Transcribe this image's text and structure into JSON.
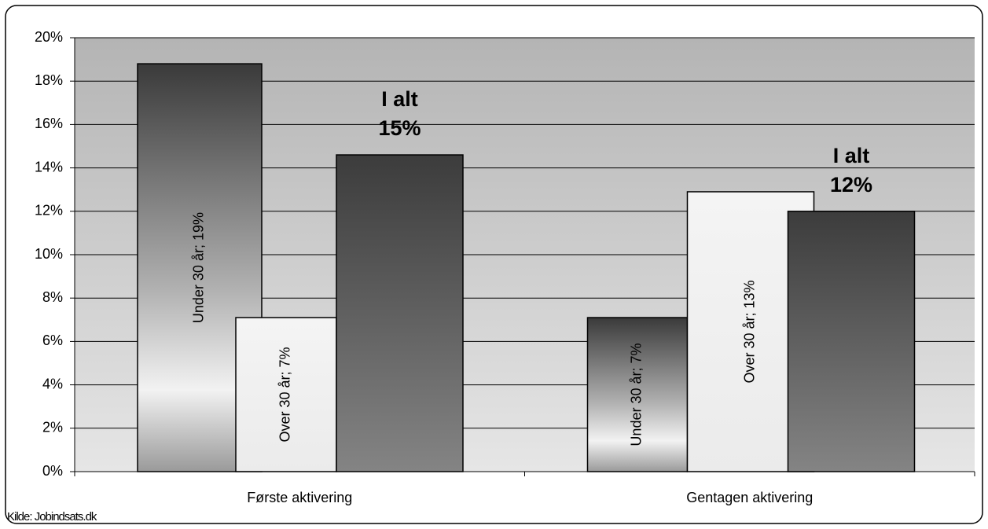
{
  "chart_data": {
    "type": "bar",
    "source": "Kilde: Jobindsats.dk",
    "categories": [
      "Første aktivering",
      "Gentagen aktivering"
    ],
    "series": [
      {
        "name": "Under 30 år",
        "values": [
          18.8,
          7.1
        ],
        "value_labels": [
          "Under 30 år; 19%",
          "Under 30 år; 7%"
        ]
      },
      {
        "name": "Over 30 år",
        "values": [
          7.1,
          12.9
        ],
        "value_labels": [
          "Over 30 år; 7%",
          "Over 30 år; 13%"
        ]
      },
      {
        "name": "I alt",
        "values": [
          14.6,
          12.0
        ],
        "value_labels": [
          "15%",
          "12%"
        ]
      }
    ],
    "ylim": [
      0,
      20
    ],
    "yticks": [
      {
        "value": 0,
        "label": "0%"
      },
      {
        "value": 2,
        "label": "2%"
      },
      {
        "value": 4,
        "label": "4%"
      },
      {
        "value": 6,
        "label": "6%"
      },
      {
        "value": 8,
        "label": "8%"
      },
      {
        "value": 10,
        "label": "10%"
      },
      {
        "value": 12,
        "label": "12%"
      },
      {
        "value": 14,
        "label": "14%"
      },
      {
        "value": 16,
        "label": "16%"
      },
      {
        "value": 18,
        "label": "18%"
      },
      {
        "value": 20,
        "label": "20%"
      }
    ],
    "grid": true
  }
}
